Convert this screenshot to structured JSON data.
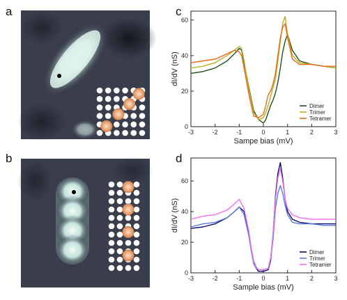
{
  "panels": {
    "a": "a",
    "b": "b",
    "c": "c",
    "d": "d"
  },
  "images": {
    "a": {
      "description": "STM topograph of an elongated dimer chain with black tip marker; inset atomic lattice with three highlighted adatoms on a diagonal",
      "lattice_highlight_color": "#e8a070"
    },
    "b": {
      "description": "STM topograph of a vertical tetramer chain of four bright lobes with black tip marker; inset atomic lattice with four highlighted adatoms in a column",
      "lattice_highlight_color": "#e8a070"
    }
  },
  "chart_data": [
    {
      "type": "line",
      "panel": "c",
      "xlabel": "Sampe bias (mV)",
      "ylabel": "dI/dV (nS)",
      "xlim": [
        -3,
        3
      ],
      "ylim": [
        0,
        65
      ],
      "xticks": [
        "-3",
        "-2",
        "-1",
        "0",
        "1",
        "2",
        "3"
      ],
      "yticks": [
        "0",
        "20",
        "40",
        "60"
      ],
      "legend_position": "bottom-right",
      "x": [
        -3,
        -2.5,
        -2,
        -1.5,
        -1.2,
        -1.0,
        -0.9,
        -0.8,
        -0.6,
        -0.4,
        -0.2,
        0,
        0.1,
        0.2,
        0.3,
        0.4,
        0.5,
        0.6,
        0.7,
        0.8,
        0.9,
        1.0,
        1.2,
        1.5,
        2,
        2.5,
        3
      ],
      "series": [
        {
          "name": "Dimer",
          "color": "#1f4f1f",
          "values": [
            30,
            31,
            33,
            37,
            41,
            44,
            43,
            36,
            22,
            9,
            4,
            2,
            4,
            8,
            12,
            15,
            19,
            25,
            33,
            42,
            48,
            52,
            43,
            37,
            35,
            34,
            33
          ]
        },
        {
          "name": "Trimer",
          "color": "#b8b020",
          "values": [
            33,
            34,
            36,
            40,
            43,
            45,
            44,
            37,
            21,
            8,
            4,
            5,
            8,
            12,
            17,
            22,
            27,
            37,
            48,
            58,
            62,
            52,
            40,
            36,
            35,
            34,
            33
          ]
        },
        {
          "name": "Tetramer",
          "color": "#e86a1a",
          "values": [
            36,
            37,
            38,
            41,
            43,
            42,
            40,
            33,
            18,
            6,
            5,
            7,
            12,
            18,
            20,
            24,
            30,
            40,
            50,
            56,
            58,
            50,
            38,
            35,
            35,
            34,
            34
          ]
        }
      ]
    },
    {
      "type": "line",
      "panel": "d",
      "xlabel": "Sample bias (mV)",
      "ylabel": "dI/dV (nS)",
      "xlim": [
        -3,
        3
      ],
      "ylim": [
        0,
        75
      ],
      "xticks": [
        "-3",
        "-2",
        "-1",
        "0",
        "1",
        "2",
        "3"
      ],
      "yticks": [
        "0",
        "20",
        "40",
        "60"
      ],
      "legend_position": "bottom-right",
      "x": [
        -3,
        -2.5,
        -2,
        -1.5,
        -1.2,
        -1.0,
        -0.8,
        -0.6,
        -0.5,
        -0.4,
        -0.3,
        -0.2,
        0,
        0.2,
        0.3,
        0.4,
        0.5,
        0.6,
        0.7,
        0.8,
        0.9,
        1.0,
        1.2,
        1.5,
        2,
        2.5,
        3
      ],
      "series": [
        {
          "name": "Dimer",
          "color": "#0a0a6e",
          "values": [
            29,
            30,
            32,
            36,
            40,
            43,
            40,
            25,
            15,
            7,
            3,
            1,
            1,
            2,
            8,
            25,
            50,
            65,
            72,
            62,
            48,
            40,
            35,
            33,
            32,
            32,
            32
          ]
        },
        {
          "name": "Trimer",
          "color": "#5a7ae0",
          "values": [
            30,
            32,
            33,
            36,
            40,
            43,
            38,
            24,
            14,
            6,
            3,
            2,
            2,
            3,
            9,
            22,
            42,
            52,
            57,
            52,
            44,
            38,
            33,
            32,
            32,
            31,
            31
          ]
        },
        {
          "name": "Tetramer",
          "color": "#f070f0",
          "values": [
            35,
            37,
            38,
            41,
            45,
            48,
            42,
            27,
            16,
            8,
            4,
            2,
            2,
            3,
            10,
            26,
            48,
            62,
            68,
            60,
            48,
            42,
            38,
            36,
            35,
            35,
            35
          ]
        }
      ]
    }
  ]
}
